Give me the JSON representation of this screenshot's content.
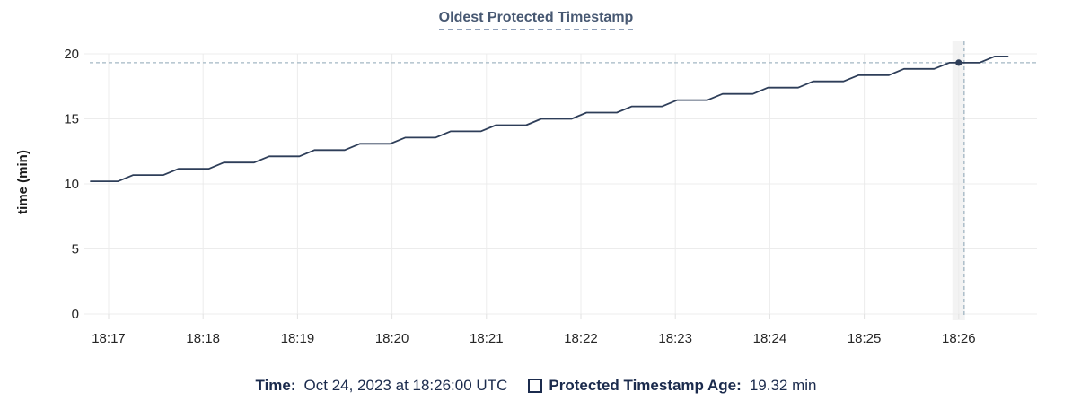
{
  "title": "Oldest Protected Timestamp",
  "footer": {
    "time_label": "Time:",
    "time_value": "Oct 24, 2023 at 18:26:00 UTC",
    "series_label": "Protected Timestamp Age:",
    "series_value": "19.32 min"
  },
  "colors": {
    "line": "#2e3e59",
    "dot": "#2e3e59",
    "grid": "#ececec",
    "axis_tick": "#e2e2e2",
    "tick_text": "#262626",
    "ylabel_text": "#1a1a1a",
    "title_text": "#475872",
    "footer_text": "#1b2b4d",
    "crosshair": "#a3b7c4",
    "hover_band": "#f3f3f3"
  },
  "chart_data": {
    "type": "line",
    "title": "Oldest Protected Timestamp",
    "xlabel": "",
    "ylabel": "time (min)",
    "ylim": [
      0,
      20
    ],
    "grid": true,
    "legend_position": "bottom",
    "y_ticks": [
      0,
      5,
      10,
      15,
      20
    ],
    "x_tick_labels": [
      "18:17",
      "18:18",
      "18:19",
      "18:20",
      "18:21",
      "18:22",
      "18:23",
      "18:24",
      "18:25",
      "18:26"
    ],
    "series": [
      {
        "name": "Protected Timestamp Age",
        "unit": "min",
        "points": [
          [
            -0.19,
            10.2
          ],
          [
            0.1,
            10.2
          ],
          [
            0.26,
            10.68
          ],
          [
            0.58,
            10.68
          ],
          [
            0.74,
            11.16
          ],
          [
            1.06,
            11.16
          ],
          [
            1.22,
            11.64
          ],
          [
            1.54,
            11.64
          ],
          [
            1.7,
            12.12
          ],
          [
            2.02,
            12.12
          ],
          [
            2.18,
            12.6
          ],
          [
            2.5,
            12.6
          ],
          [
            2.66,
            13.08
          ],
          [
            2.98,
            13.08
          ],
          [
            3.14,
            13.56
          ],
          [
            3.46,
            13.56
          ],
          [
            3.62,
            14.04
          ],
          [
            3.94,
            14.04
          ],
          [
            4.1,
            14.52
          ],
          [
            4.42,
            14.52
          ],
          [
            4.58,
            15.0
          ],
          [
            4.9,
            15.0
          ],
          [
            5.06,
            15.48
          ],
          [
            5.38,
            15.48
          ],
          [
            5.54,
            15.96
          ],
          [
            5.86,
            15.96
          ],
          [
            6.02,
            16.44
          ],
          [
            6.34,
            16.44
          ],
          [
            6.5,
            16.92
          ],
          [
            6.82,
            16.92
          ],
          [
            6.98,
            17.4
          ],
          [
            7.3,
            17.4
          ],
          [
            7.46,
            17.88
          ],
          [
            7.78,
            17.88
          ],
          [
            7.94,
            18.36
          ],
          [
            8.26,
            18.36
          ],
          [
            8.42,
            18.84
          ],
          [
            8.74,
            18.84
          ],
          [
            8.9,
            19.32
          ],
          [
            9.22,
            19.32
          ],
          [
            9.38,
            19.8
          ],
          [
            9.52,
            19.8
          ]
        ]
      }
    ],
    "crosshair": {
      "time": "18:26:00",
      "t_min": 9,
      "value": 19.32
    }
  }
}
